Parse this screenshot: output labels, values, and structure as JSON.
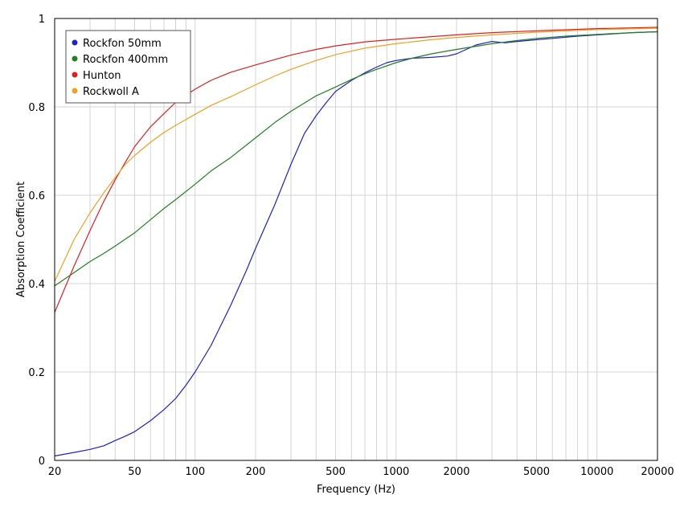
{
  "chart_data": {
    "type": "line",
    "xlabel": "Frequency (Hz)",
    "ylabel": "Absorption Coefficient",
    "x_scale": "log",
    "xlim": [
      20,
      20000
    ],
    "ylim": [
      0,
      1
    ],
    "grid": true,
    "legend_position": "top-left",
    "x_tick_labels": [
      "20",
      "50",
      "100",
      "200",
      "500",
      "1000",
      "2000",
      "5000",
      "10000",
      "20000"
    ],
    "y_tick_labels": [
      "0",
      "0.2",
      "0.4",
      "0.6",
      "0.8",
      "1"
    ],
    "series": [
      {
        "name": "Rockfon 50mm",
        "color": "#2020cc",
        "x": [
          20,
          25,
          30,
          35,
          40,
          45,
          50,
          60,
          70,
          80,
          90,
          100,
          120,
          150,
          180,
          200,
          250,
          300,
          350,
          400,
          450,
          500,
          600,
          700,
          800,
          900,
          1000,
          1200,
          1500,
          1800,
          2000,
          2500,
          3000,
          3500,
          4000,
          5000,
          6000,
          8000,
          10000,
          15000,
          20000
        ],
        "y": [
          0.01,
          0.018,
          0.025,
          0.033,
          0.045,
          0.055,
          0.065,
          0.09,
          0.115,
          0.14,
          0.17,
          0.2,
          0.26,
          0.35,
          0.43,
          0.48,
          0.58,
          0.67,
          0.74,
          0.78,
          0.81,
          0.835,
          0.86,
          0.877,
          0.89,
          0.9,
          0.905,
          0.91,
          0.912,
          0.915,
          0.92,
          0.94,
          0.948,
          0.945,
          0.948,
          0.952,
          0.955,
          0.96,
          0.963,
          0.968,
          0.97
        ]
      },
      {
        "name": "Rockfon 400mm",
        "color": "#208020",
        "x": [
          20,
          25,
          30,
          35,
          40,
          50,
          60,
          70,
          80,
          100,
          120,
          150,
          200,
          250,
          300,
          400,
          500,
          600,
          700,
          800,
          1000,
          1200,
          1500,
          2000,
          2500,
          3000,
          4000,
          5000,
          7000,
          10000,
          15000,
          20000
        ],
        "y": [
          0.395,
          0.425,
          0.45,
          0.468,
          0.485,
          0.515,
          0.545,
          0.57,
          0.59,
          0.625,
          0.655,
          0.685,
          0.73,
          0.765,
          0.79,
          0.825,
          0.845,
          0.862,
          0.875,
          0.885,
          0.9,
          0.91,
          0.92,
          0.93,
          0.937,
          0.943,
          0.95,
          0.955,
          0.96,
          0.964,
          0.968,
          0.97
        ]
      },
      {
        "name": "Hunton",
        "color": "#e02020",
        "x": [
          20,
          25,
          30,
          35,
          40,
          45,
          50,
          60,
          70,
          80,
          100,
          120,
          150,
          200,
          250,
          300,
          400,
          500,
          700,
          1000,
          1500,
          2000,
          3000,
          5000,
          10000,
          20000
        ],
        "y": [
          0.335,
          0.44,
          0.52,
          0.585,
          0.635,
          0.675,
          0.71,
          0.755,
          0.785,
          0.81,
          0.84,
          0.86,
          0.878,
          0.895,
          0.907,
          0.917,
          0.93,
          0.938,
          0.947,
          0.953,
          0.959,
          0.963,
          0.968,
          0.972,
          0.977,
          0.98
        ]
      },
      {
        "name": "Rockwoll A",
        "color": "#f0a020",
        "x": [
          20,
          25,
          30,
          35,
          40,
          45,
          50,
          60,
          70,
          80,
          100,
          120,
          150,
          200,
          250,
          300,
          400,
          500,
          700,
          1000,
          1500,
          2000,
          3000,
          5000,
          10000,
          20000
        ],
        "y": [
          0.405,
          0.5,
          0.56,
          0.605,
          0.64,
          0.67,
          0.69,
          0.72,
          0.742,
          0.758,
          0.783,
          0.803,
          0.823,
          0.85,
          0.87,
          0.885,
          0.905,
          0.918,
          0.933,
          0.943,
          0.952,
          0.957,
          0.963,
          0.969,
          0.975,
          0.978
        ]
      }
    ]
  }
}
